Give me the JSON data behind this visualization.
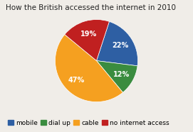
{
  "title": "How the British accessed the internet in 2010",
  "labels": [
    "mobile",
    "dial up",
    "cable",
    "no internet access"
  ],
  "values": [
    22,
    12,
    47,
    19
  ],
  "colors": [
    "#2E5FA3",
    "#3A8C3F",
    "#F5A020",
    "#C02020"
  ],
  "startangle": 72,
  "title_fontsize": 7.5,
  "legend_fontsize": 6.5,
  "autopct_fontsize": 7.0,
  "background_color": "#f0ede8",
  "pctdistance": 0.68
}
